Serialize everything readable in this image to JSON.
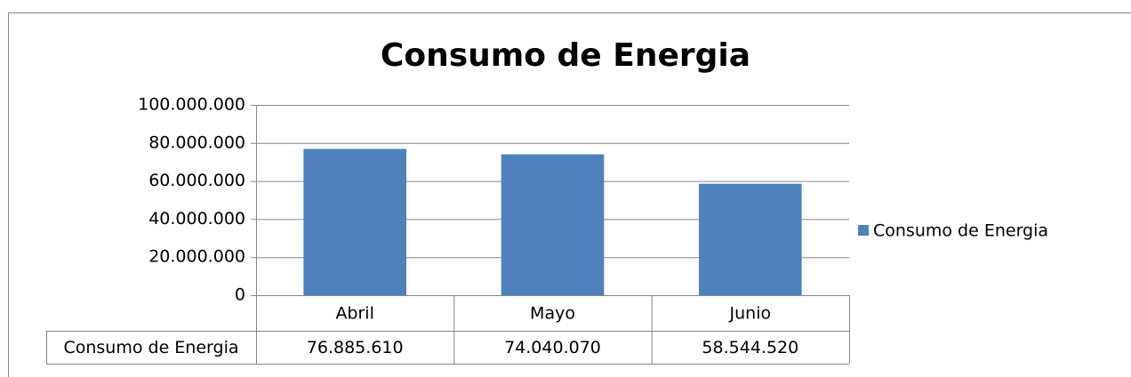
{
  "chart_data": {
    "type": "bar",
    "title": "Consumo de Energia",
    "categories": [
      "Abril",
      "Mayo",
      "Junio"
    ],
    "series": [
      {
        "name": "Consumo de Energia",
        "color": "#4f81bd",
        "values": [
          76885610,
          74040070,
          58544520
        ],
        "value_labels": [
          "76.885.610",
          "74.040.070",
          "58.544.520"
        ]
      }
    ],
    "ylim": [
      0,
      100000000
    ],
    "yticks": [
      0,
      {
        "value": 20000000,
        "label": "20.000.000"
      },
      {
        "value": 40000000,
        "label": "40.000.000"
      },
      {
        "value": 60000000,
        "label": "60.000.000"
      },
      {
        "value": 80000000,
        "label": "80.000.000"
      },
      {
        "value": 100000000,
        "label": "100.000.000"
      }
    ],
    "grid": true,
    "legend": "right",
    "data_table": true
  }
}
